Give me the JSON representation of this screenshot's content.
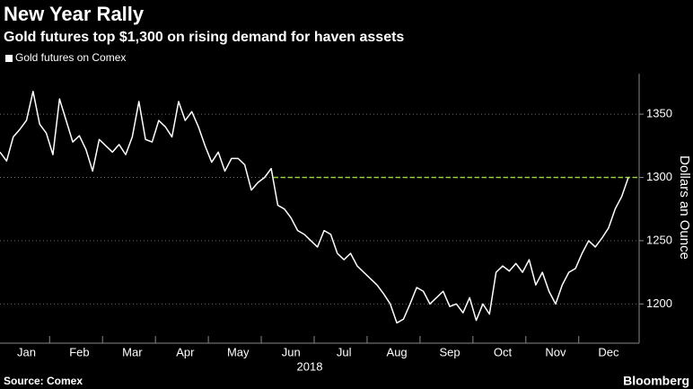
{
  "chart_data": {
    "type": "line",
    "title": "New Year Rally",
    "subtitle": "Gold futures top $1,300 on rising demand for haven assets",
    "y_label": "Dollars an Ounce",
    "x_label": "2018",
    "source": "Source: Comex",
    "brand": "Bloomberg",
    "categories": [
      null,
      null,
      null,
      null,
      "Jan",
      null,
      null,
      null,
      null,
      null,
      null,
      null,
      "Feb",
      null,
      null,
      null,
      null,
      null,
      null,
      null,
      "Mar",
      null,
      null,
      null,
      null,
      null,
      null,
      null,
      "Apr",
      null,
      null,
      null,
      null,
      null,
      null,
      null,
      "May",
      null,
      null,
      null,
      null,
      null,
      null,
      null,
      "Jun",
      null,
      null,
      null,
      null,
      null,
      null,
      null,
      "Jul",
      null,
      null,
      null,
      null,
      null,
      null,
      null,
      "Aug",
      null,
      null,
      null,
      null,
      null,
      null,
      null,
      "Sep",
      null,
      null,
      null,
      null,
      null,
      null,
      null,
      "Oct",
      null,
      null,
      null,
      null,
      null,
      null,
      null,
      "Nov",
      null,
      null,
      null,
      null,
      null,
      null,
      null,
      "Dec",
      null,
      null,
      null
    ],
    "series": [
      {
        "name": "Gold futures on Comex",
        "color": "#ffffff",
        "values": [
          1320,
          1313,
          1332,
          1338,
          1345,
          1368,
          1342,
          1335,
          1318,
          1362,
          1345,
          1328,
          1333,
          1322,
          1305,
          1330,
          1325,
          1320,
          1326,
          1318,
          1332,
          1360,
          1330,
          1328,
          1345,
          1340,
          1332,
          1360,
          1345,
          1352,
          1340,
          1325,
          1312,
          1320,
          1305,
          1315,
          1315,
          1310,
          1290,
          1296,
          1300,
          1307,
          1278,
          1275,
          1268,
          1258,
          1255,
          1250,
          1245,
          1258,
          1255,
          1240,
          1235,
          1240,
          1230,
          1225,
          1220,
          1215,
          1208,
          1200,
          1185,
          1188,
          1200,
          1213,
          1210,
          1200,
          1205,
          1210,
          1198,
          1200,
          1193,
          1205,
          1187,
          1200,
          1192,
          1225,
          1230,
          1226,
          1232,
          1225,
          1235,
          1215,
          1225,
          1210,
          1200,
          1215,
          1225,
          1228,
          1240,
          1250,
          1245,
          1252,
          1260,
          1275,
          1285,
          1300
        ]
      }
    ],
    "reference_line": {
      "value": 1300,
      "color": "#9acd32"
    },
    "ylim": [
      1169,
      1382
    ],
    "yticks": [
      1200,
      1250,
      1300,
      1350
    ],
    "grid": true
  }
}
